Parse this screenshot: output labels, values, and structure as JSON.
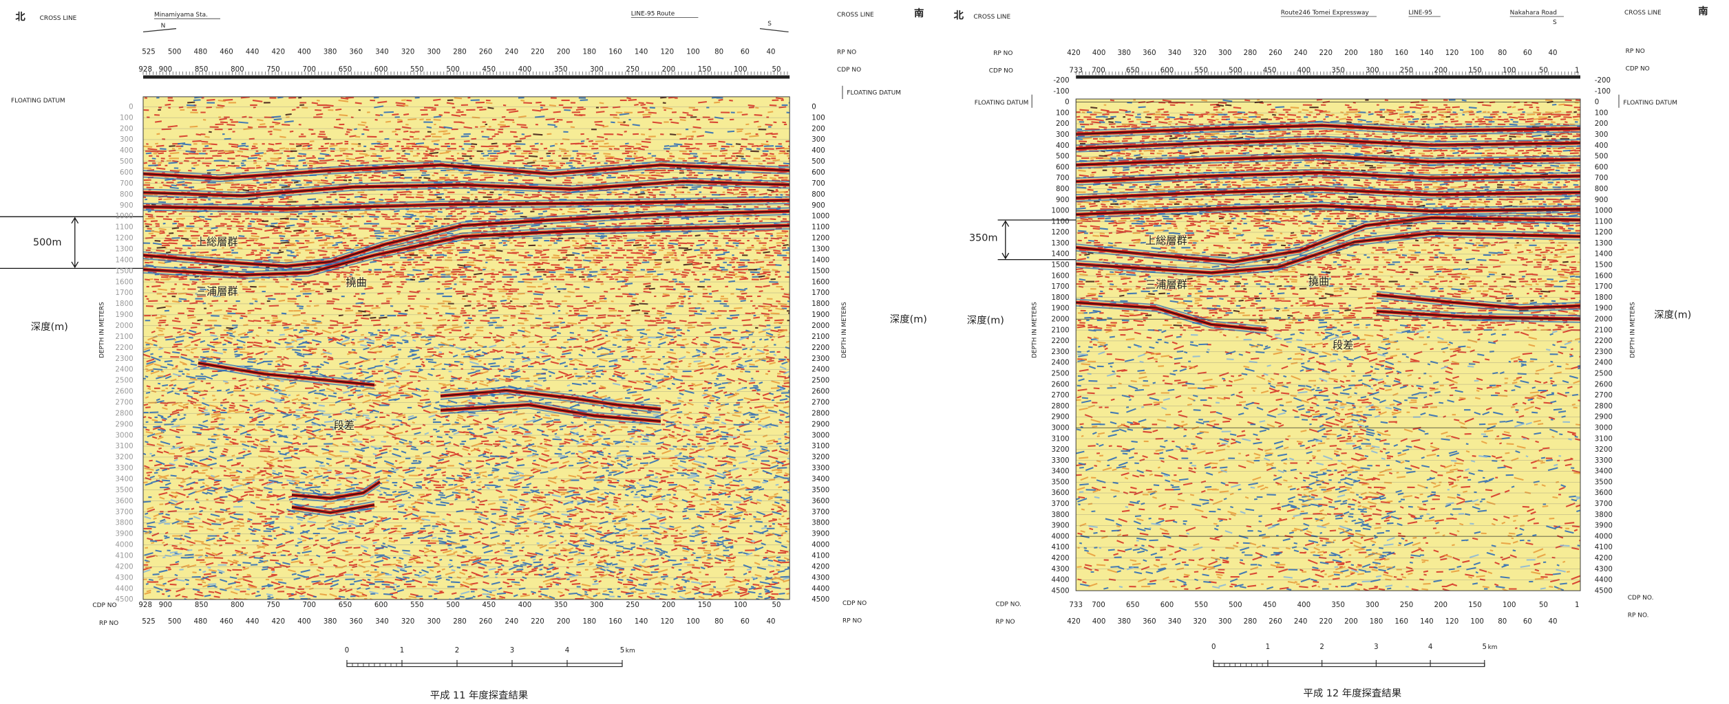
{
  "panels": [
    {
      "header": {
        "north": "北",
        "cross_line_left": "CROSS LINE",
        "landmark": "Minamiyama Sta.",
        "north_arrow": "N",
        "line_name": "LINE-95 Route",
        "south_arrow": "S",
        "cross_line_right": "CROSS LINE",
        "south": "南"
      },
      "rp_label": "RP NO",
      "cdp_label": "CDP NO",
      "rp_numbers": [
        525,
        500,
        480,
        460,
        440,
        420,
        400,
        380,
        360,
        340,
        320,
        300,
        280,
        260,
        240,
        220,
        200,
        180,
        160,
        140,
        120,
        100,
        80,
        60,
        40
      ],
      "cdp_numbers": [
        928,
        900,
        850,
        800,
        750,
        700,
        650,
        600,
        550,
        500,
        450,
        400,
        350,
        300,
        250,
        200,
        150,
        100,
        50
      ],
      "floating_datum": "FLOATING DATUM",
      "depth_ticks": [
        0,
        100,
        200,
        300,
        400,
        500,
        600,
        700,
        800,
        900,
        1000,
        1100,
        1200,
        1300,
        1400,
        1500,
        1600,
        1700,
        1800,
        1900,
        2000,
        2100,
        2200,
        2300,
        2400,
        2500,
        2600,
        2700,
        2800,
        2900,
        3000,
        3100,
        3200,
        3300,
        3400,
        3500,
        3600,
        3700,
        3800,
        3900,
        4000,
        4100,
        4200,
        4300,
        4400,
        4500
      ],
      "depth_axis_title": "DEPTH IN METERS",
      "depth_label": "深度(m)",
      "thickness": "500m",
      "annotations": [
        "上総層群",
        "三浦層群",
        "撓曲",
        "段差"
      ],
      "scale_bar": [
        0,
        1,
        2,
        3,
        4,
        5
      ],
      "scale_unit": "km",
      "caption": "平成 11 年度探査結果"
    },
    {
      "header": {
        "north": "北",
        "cross_line_left": "CROSS LINE",
        "landmark": "Route246 Tomei Expressway",
        "line_name": "LINE-95",
        "landmark_right": "Nakahara Road",
        "south_arrow": "S",
        "cross_line_right": "CROSS LINE",
        "south": "南"
      },
      "rp_label": "RP NO",
      "cdp_label": "CDP NO",
      "rp_label_alt": "RP NO.",
      "cdp_label_alt": "CDP NO.",
      "rp_numbers": [
        420,
        400,
        380,
        360,
        340,
        320,
        300,
        280,
        260,
        240,
        220,
        200,
        180,
        160,
        140,
        120,
        100,
        80,
        60,
        40
      ],
      "cdp_numbers": [
        733,
        700,
        650,
        600,
        550,
        500,
        450,
        400,
        350,
        300,
        250,
        200,
        150,
        100,
        50,
        1
      ],
      "floating_datum": "FLOATING DATUM",
      "depth_ticks": [
        -200,
        -100,
        0,
        100,
        200,
        300,
        400,
        500,
        600,
        700,
        800,
        900,
        1000,
        1100,
        1200,
        1300,
        1400,
        1500,
        1600,
        1700,
        1800,
        1900,
        2000,
        2100,
        2200,
        2300,
        2400,
        2500,
        2600,
        2700,
        2800,
        2900,
        3000,
        3100,
        3200,
        3300,
        3400,
        3500,
        3600,
        3700,
        3800,
        3900,
        4000,
        4100,
        4200,
        4300,
        4400,
        4500
      ],
      "depth_axis_title": "DEPTH IN METERS",
      "depth_label": "深度(m)",
      "thickness": "350m",
      "annotations": [
        "上総層群",
        "三浦層群",
        "撓曲",
        "段差"
      ],
      "scale_bar": [
        0,
        1,
        2,
        3,
        4,
        5
      ],
      "scale_unit": "km",
      "caption": "平成 12 年度探査結果"
    }
  ]
}
